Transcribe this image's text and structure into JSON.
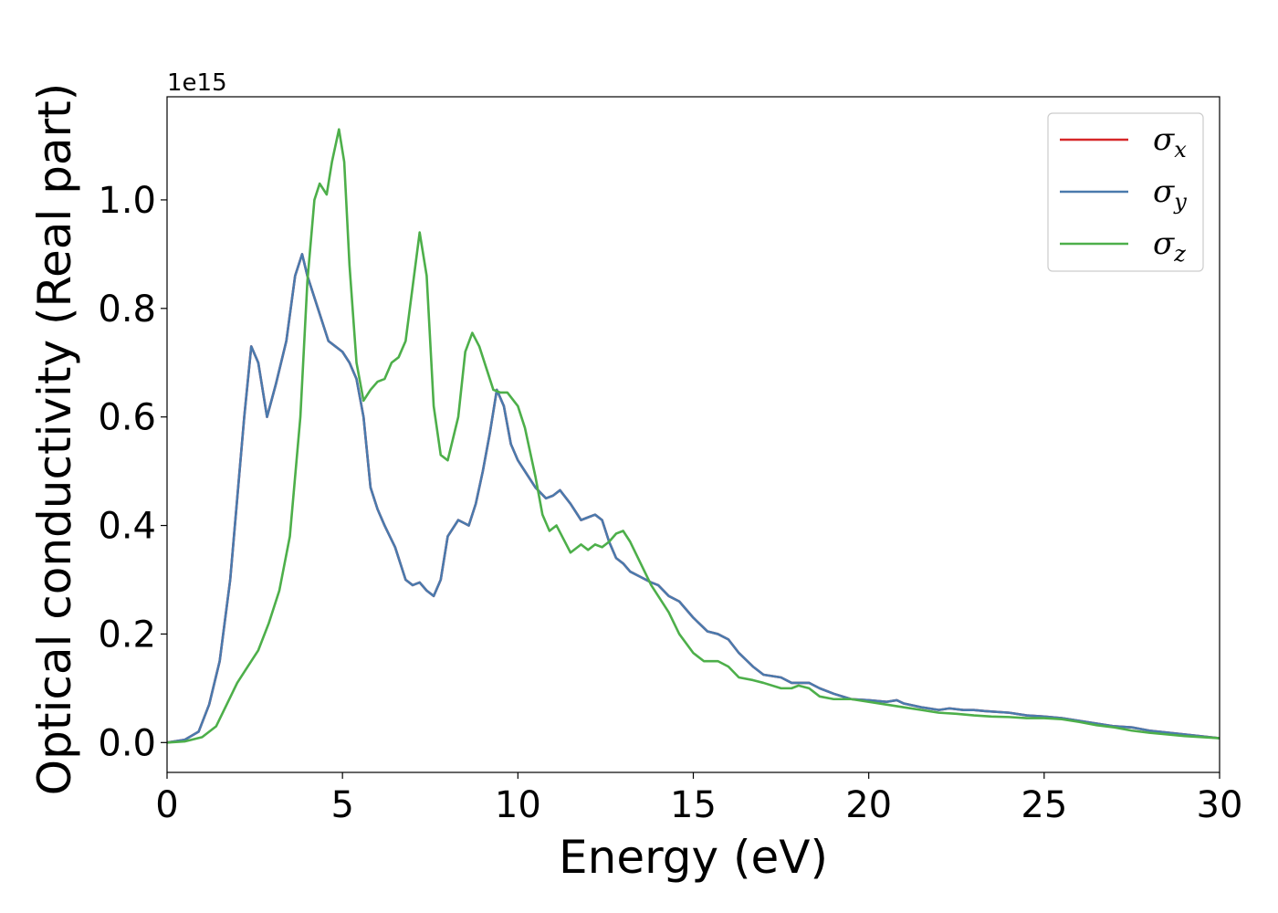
{
  "chart_data": {
    "type": "line",
    "xlabel": "Energy (eV)",
    "ylabel": "Optical conductivity (Real part)",
    "y_offset_label": "1e15",
    "xlim": [
      0,
      30
    ],
    "ylim": [
      -0.055,
      1.19
    ],
    "x_ticks": [
      0,
      5,
      10,
      15,
      20,
      25,
      30
    ],
    "x_tick_labels": [
      "0",
      "5",
      "10",
      "15",
      "20",
      "25",
      "30"
    ],
    "y_ticks": [
      0.0,
      0.2,
      0.4,
      0.6,
      0.8,
      1.0
    ],
    "y_tick_labels": [
      "0.0",
      "0.2",
      "0.4",
      "0.6",
      "0.8",
      "1.0"
    ],
    "grid": false,
    "legend_position": "top-right",
    "series": [
      {
        "name": "σx",
        "symbol": "σ",
        "subscript": "x",
        "color": "#d62728",
        "x": [
          0,
          0.5,
          0.9,
          1.2,
          1.5,
          1.8,
          2.0,
          2.2,
          2.4,
          2.6,
          2.85,
          3.1,
          3.4,
          3.65,
          3.85,
          4.0,
          4.3,
          4.6,
          4.8,
          5.0,
          5.2,
          5.4,
          5.6,
          5.8,
          6.0,
          6.2,
          6.5,
          6.8,
          7.0,
          7.2,
          7.4,
          7.6,
          7.8,
          8.0,
          8.3,
          8.6,
          8.8,
          9.0,
          9.2,
          9.4,
          9.6,
          9.8,
          10.0,
          10.2,
          10.5,
          10.8,
          11.0,
          11.2,
          11.5,
          11.8,
          12.0,
          12.2,
          12.4,
          12.6,
          12.8,
          13.0,
          13.2,
          13.5,
          13.8,
          14.0,
          14.3,
          14.6,
          15.0,
          15.4,
          15.7,
          16.0,
          16.3,
          16.7,
          17.0,
          17.5,
          17.8,
          18.0,
          18.3,
          18.6,
          19.0,
          19.5,
          20.0,
          20.5,
          20.8,
          21.0,
          21.5,
          22.0,
          22.3,
          22.7,
          23.0,
          23.3,
          24.0,
          24.5,
          25.0,
          25.5,
          26.0,
          26.5,
          27.0,
          27.5,
          28.0,
          29.0,
          30.0
        ],
        "values": [
          0.0,
          0.005,
          0.02,
          0.07,
          0.15,
          0.3,
          0.45,
          0.6,
          0.73,
          0.7,
          0.6,
          0.66,
          0.74,
          0.86,
          0.9,
          0.86,
          0.8,
          0.74,
          0.73,
          0.72,
          0.7,
          0.67,
          0.6,
          0.47,
          0.43,
          0.4,
          0.36,
          0.3,
          0.29,
          0.295,
          0.28,
          0.27,
          0.3,
          0.38,
          0.41,
          0.4,
          0.44,
          0.5,
          0.57,
          0.65,
          0.62,
          0.55,
          0.52,
          0.5,
          0.47,
          0.45,
          0.455,
          0.465,
          0.44,
          0.41,
          0.415,
          0.42,
          0.41,
          0.37,
          0.34,
          0.33,
          0.315,
          0.305,
          0.295,
          0.29,
          0.27,
          0.26,
          0.23,
          0.205,
          0.2,
          0.19,
          0.165,
          0.14,
          0.125,
          0.12,
          0.11,
          0.11,
          0.11,
          0.1,
          0.09,
          0.08,
          0.078,
          0.075,
          0.078,
          0.072,
          0.065,
          0.06,
          0.063,
          0.06,
          0.06,
          0.058,
          0.055,
          0.05,
          0.048,
          0.045,
          0.04,
          0.035,
          0.03,
          0.028,
          0.022,
          0.015,
          0.008
        ]
      },
      {
        "name": "σy",
        "symbol": "σ",
        "subscript": "y",
        "color": "#4a7aad",
        "x": [
          0,
          0.5,
          0.9,
          1.2,
          1.5,
          1.8,
          2.0,
          2.2,
          2.4,
          2.6,
          2.85,
          3.1,
          3.4,
          3.65,
          3.85,
          4.0,
          4.3,
          4.6,
          4.8,
          5.0,
          5.2,
          5.4,
          5.6,
          5.8,
          6.0,
          6.2,
          6.5,
          6.8,
          7.0,
          7.2,
          7.4,
          7.6,
          7.8,
          8.0,
          8.3,
          8.6,
          8.8,
          9.0,
          9.2,
          9.4,
          9.6,
          9.8,
          10.0,
          10.2,
          10.5,
          10.8,
          11.0,
          11.2,
          11.5,
          11.8,
          12.0,
          12.2,
          12.4,
          12.6,
          12.8,
          13.0,
          13.2,
          13.5,
          13.8,
          14.0,
          14.3,
          14.6,
          15.0,
          15.4,
          15.7,
          16.0,
          16.3,
          16.7,
          17.0,
          17.5,
          17.8,
          18.0,
          18.3,
          18.6,
          19.0,
          19.5,
          20.0,
          20.5,
          20.8,
          21.0,
          21.5,
          22.0,
          22.3,
          22.7,
          23.0,
          23.3,
          24.0,
          24.5,
          25.0,
          25.5,
          26.0,
          26.5,
          27.0,
          27.5,
          28.0,
          29.0,
          30.0
        ],
        "values": [
          0.0,
          0.005,
          0.02,
          0.07,
          0.15,
          0.3,
          0.45,
          0.6,
          0.73,
          0.7,
          0.6,
          0.66,
          0.74,
          0.86,
          0.9,
          0.86,
          0.8,
          0.74,
          0.73,
          0.72,
          0.7,
          0.67,
          0.6,
          0.47,
          0.43,
          0.4,
          0.36,
          0.3,
          0.29,
          0.295,
          0.28,
          0.27,
          0.3,
          0.38,
          0.41,
          0.4,
          0.44,
          0.5,
          0.57,
          0.65,
          0.62,
          0.55,
          0.52,
          0.5,
          0.47,
          0.45,
          0.455,
          0.465,
          0.44,
          0.41,
          0.415,
          0.42,
          0.41,
          0.37,
          0.34,
          0.33,
          0.315,
          0.305,
          0.295,
          0.29,
          0.27,
          0.26,
          0.23,
          0.205,
          0.2,
          0.19,
          0.165,
          0.14,
          0.125,
          0.12,
          0.11,
          0.11,
          0.11,
          0.1,
          0.09,
          0.08,
          0.078,
          0.075,
          0.078,
          0.072,
          0.065,
          0.06,
          0.063,
          0.06,
          0.06,
          0.058,
          0.055,
          0.05,
          0.048,
          0.045,
          0.04,
          0.035,
          0.03,
          0.028,
          0.022,
          0.015,
          0.008
        ]
      },
      {
        "name": "σz",
        "symbol": "σ",
        "subscript": "z",
        "color": "#4daf4a",
        "x": [
          0,
          0.5,
          1.0,
          1.4,
          1.7,
          2.0,
          2.3,
          2.6,
          2.9,
          3.2,
          3.5,
          3.8,
          4.0,
          4.2,
          4.35,
          4.55,
          4.7,
          4.9,
          5.05,
          5.2,
          5.4,
          5.6,
          5.8,
          6.0,
          6.2,
          6.4,
          6.6,
          6.8,
          7.0,
          7.2,
          7.4,
          7.6,
          7.8,
          8.0,
          8.3,
          8.5,
          8.7,
          8.9,
          9.1,
          9.3,
          9.5,
          9.7,
          10.0,
          10.2,
          10.5,
          10.7,
          10.9,
          11.1,
          11.3,
          11.5,
          11.8,
          12.0,
          12.2,
          12.4,
          12.6,
          12.8,
          13.0,
          13.2,
          13.5,
          13.8,
          14.0,
          14.3,
          14.6,
          15.0,
          15.3,
          15.7,
          16.0,
          16.3,
          16.7,
          17.0,
          17.5,
          17.8,
          18.0,
          18.3,
          18.6,
          19.0,
          19.5,
          20.0,
          20.5,
          21.0,
          21.5,
          22.0,
          22.5,
          23.0,
          23.5,
          24.0,
          24.5,
          25.0,
          25.5,
          26.0,
          26.5,
          27.0,
          27.5,
          28.0,
          29.0,
          30.0
        ],
        "values": [
          0.0,
          0.002,
          0.01,
          0.03,
          0.07,
          0.11,
          0.14,
          0.17,
          0.22,
          0.28,
          0.38,
          0.6,
          0.85,
          1.0,
          1.03,
          1.01,
          1.07,
          1.13,
          1.07,
          0.88,
          0.7,
          0.63,
          0.65,
          0.665,
          0.67,
          0.7,
          0.71,
          0.74,
          0.84,
          0.94,
          0.86,
          0.62,
          0.53,
          0.52,
          0.6,
          0.72,
          0.755,
          0.73,
          0.69,
          0.65,
          0.645,
          0.645,
          0.62,
          0.58,
          0.49,
          0.42,
          0.39,
          0.4,
          0.375,
          0.35,
          0.365,
          0.355,
          0.365,
          0.36,
          0.37,
          0.385,
          0.39,
          0.37,
          0.33,
          0.29,
          0.27,
          0.24,
          0.2,
          0.165,
          0.15,
          0.15,
          0.14,
          0.12,
          0.115,
          0.11,
          0.1,
          0.1,
          0.105,
          0.1,
          0.085,
          0.08,
          0.08,
          0.075,
          0.07,
          0.065,
          0.06,
          0.055,
          0.053,
          0.05,
          0.048,
          0.047,
          0.045,
          0.045,
          0.043,
          0.038,
          0.032,
          0.028,
          0.022,
          0.018,
          0.012,
          0.008
        ]
      }
    ]
  }
}
